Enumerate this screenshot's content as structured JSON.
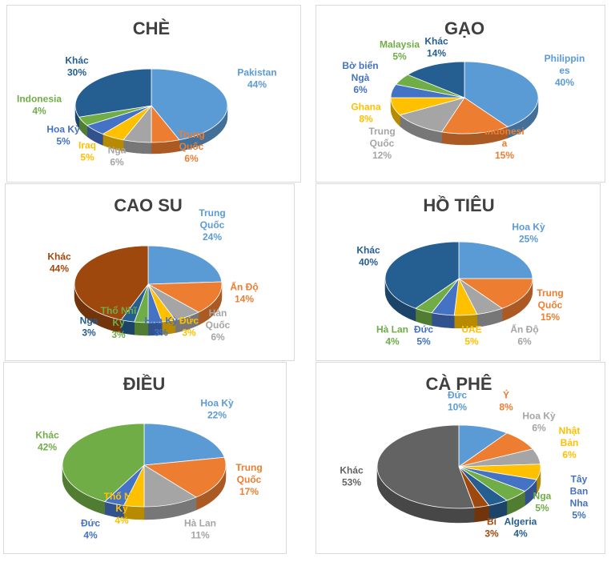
{
  "colors": {
    "blue": "#5B9BD5",
    "orange": "#ED7D31",
    "gray": "#A5A5A5",
    "gold": "#FFC000",
    "darkblue": "#4472C4",
    "green": "#70AD47",
    "navy": "#255E91",
    "brown": "#9E480E",
    "charcoal": "#636363",
    "darkbrown": "#843C0C",
    "darkgreen": "#43682B",
    "midblue": "#264478"
  },
  "chart_data": [
    {
      "type": "pie",
      "title": "CHÈ",
      "slices": [
        {
          "lines": [
            "Pakistan"
          ],
          "value": 44,
          "pct": "44%",
          "color": "#5B9BD5"
        },
        {
          "lines": [
            "Trung",
            "Quốc"
          ],
          "value": 6,
          "pct": "6%",
          "color": "#ED7D31"
        },
        {
          "lines": [
            "Nga"
          ],
          "value": 6,
          "pct": "6%",
          "color": "#A5A5A5"
        },
        {
          "lines": [
            "Iraq"
          ],
          "value": 5,
          "pct": "5%",
          "color": "#FFC000"
        },
        {
          "lines": [
            "Hoa Kỳ"
          ],
          "value": 5,
          "pct": "5%",
          "color": "#4472C4"
        },
        {
          "lines": [
            "Indonesia"
          ],
          "value": 4,
          "pct": "4%",
          "color": "#70AD47"
        },
        {
          "lines": [
            "Khác"
          ],
          "value": 30,
          "pct": "30%",
          "color": "#255E91"
        }
      ]
    },
    {
      "type": "pie",
      "title": "GẠO",
      "slices": [
        {
          "lines": [
            "Philippin",
            "es"
          ],
          "value": 40,
          "pct": "40%",
          "color": "#5B9BD5"
        },
        {
          "lines": [
            "Indonesi",
            "a"
          ],
          "value": 15,
          "pct": "15%",
          "color": "#ED7D31"
        },
        {
          "lines": [
            "Trung",
            "Quốc"
          ],
          "value": 12,
          "pct": "12%",
          "color": "#A5A5A5"
        },
        {
          "lines": [
            "Ghana"
          ],
          "value": 8,
          "pct": "8%",
          "color": "#FFC000"
        },
        {
          "lines": [
            "Bờ biển",
            "Ngà"
          ],
          "value": 6,
          "pct": "6%",
          "color": "#4472C4"
        },
        {
          "lines": [
            "Malaysia"
          ],
          "value": 5,
          "pct": "5%",
          "color": "#70AD47"
        },
        {
          "lines": [
            "Khác"
          ],
          "value": 14,
          "pct": "14%",
          "color": "#255E91"
        }
      ]
    },
    {
      "type": "pie",
      "title": "CAO SU",
      "slices": [
        {
          "lines": [
            "Trung",
            "Quốc"
          ],
          "value": 24,
          "pct": "24%",
          "color": "#5B9BD5"
        },
        {
          "lines": [
            "Ấn Độ"
          ],
          "value": 14,
          "pct": "14%",
          "color": "#ED7D31"
        },
        {
          "lines": [
            "Hàn",
            "Quốc"
          ],
          "value": 6,
          "pct": "6%",
          "color": "#A5A5A5"
        },
        {
          "lines": [
            "Đức"
          ],
          "value": 3,
          "pct": "3%",
          "color": "#FFC000"
        },
        {
          "lines": [
            "Hoa Kỳ"
          ],
          "value": 3,
          "pct": "3%",
          "color": "#4472C4"
        },
        {
          "lines": [
            "Thổ Nhĩ",
            "Kỳ"
          ],
          "value": 3,
          "pct": "3%",
          "color": "#70AD47"
        },
        {
          "lines": [
            "Nga"
          ],
          "value": 3,
          "pct": "3%",
          "color": "#255E91"
        },
        {
          "lines": [
            "Khác"
          ],
          "value": 44,
          "pct": "44%",
          "color": "#9E480E"
        }
      ]
    },
    {
      "type": "pie",
      "title": "HỒ TIÊU",
      "slices": [
        {
          "lines": [
            "Hoa Kỳ"
          ],
          "value": 25,
          "pct": "25%",
          "color": "#5B9BD5"
        },
        {
          "lines": [
            "Trung",
            "Quốc"
          ],
          "value": 15,
          "pct": "15%",
          "color": "#ED7D31"
        },
        {
          "lines": [
            "Ấn Độ"
          ],
          "value": 6,
          "pct": "6%",
          "color": "#A5A5A5"
        },
        {
          "lines": [
            "UAE"
          ],
          "value": 5,
          "pct": "5%",
          "color": "#FFC000"
        },
        {
          "lines": [
            "Đức"
          ],
          "value": 5,
          "pct": "5%",
          "color": "#4472C4"
        },
        {
          "lines": [
            "Hà Lan"
          ],
          "value": 4,
          "pct": "4%",
          "color": "#70AD47"
        },
        {
          "lines": [
            "Khác"
          ],
          "value": 40,
          "pct": "40%",
          "color": "#255E91"
        }
      ]
    },
    {
      "type": "pie",
      "title": "ĐIỀU",
      "slices": [
        {
          "lines": [
            "Hoa Kỳ"
          ],
          "value": 22,
          "pct": "22%",
          "color": "#5B9BD5"
        },
        {
          "lines": [
            "Trung",
            "Quốc"
          ],
          "value": 17,
          "pct": "17%",
          "color": "#ED7D31"
        },
        {
          "lines": [
            "Hà Lan"
          ],
          "value": 11,
          "pct": "11%",
          "color": "#A5A5A5"
        },
        {
          "lines": [
            "Thổ Nhĩ",
            "Kỳ"
          ],
          "value": 4,
          "pct": "4%",
          "color": "#FFC000"
        },
        {
          "lines": [
            "Đức"
          ],
          "value": 4,
          "pct": "4%",
          "color": "#4472C4"
        },
        {
          "lines": [
            "Khác"
          ],
          "value": 42,
          "pct": "42%",
          "color": "#70AD47"
        }
      ]
    },
    {
      "type": "pie",
      "title": "CÀ PHÊ",
      "slices": [
        {
          "lines": [
            "Đức"
          ],
          "value": 10,
          "pct": "10%",
          "color": "#5B9BD5"
        },
        {
          "lines": [
            "Ý"
          ],
          "value": 8,
          "pct": "8%",
          "color": "#ED7D31"
        },
        {
          "lines": [
            "Hoa Kỳ"
          ],
          "value": 6,
          "pct": "6%",
          "color": "#A5A5A5"
        },
        {
          "lines": [
            "Nhật",
            "Bản"
          ],
          "value": 6,
          "pct": "6%",
          "color": "#FFC000"
        },
        {
          "lines": [
            "Tây",
            "Ban",
            "Nha"
          ],
          "value": 5,
          "pct": "5%",
          "color": "#4472C4"
        },
        {
          "lines": [
            "Nga"
          ],
          "value": 5,
          "pct": "5%",
          "color": "#70AD47"
        },
        {
          "lines": [
            "Algeria"
          ],
          "value": 4,
          "pct": "4%",
          "color": "#255E91"
        },
        {
          "lines": [
            "Bỉ"
          ],
          "value": 3,
          "pct": "3%",
          "color": "#9E480E"
        },
        {
          "lines": [
            "Khác"
          ],
          "value": 53,
          "pct": "53%",
          "color": "#636363"
        }
      ]
    }
  ]
}
